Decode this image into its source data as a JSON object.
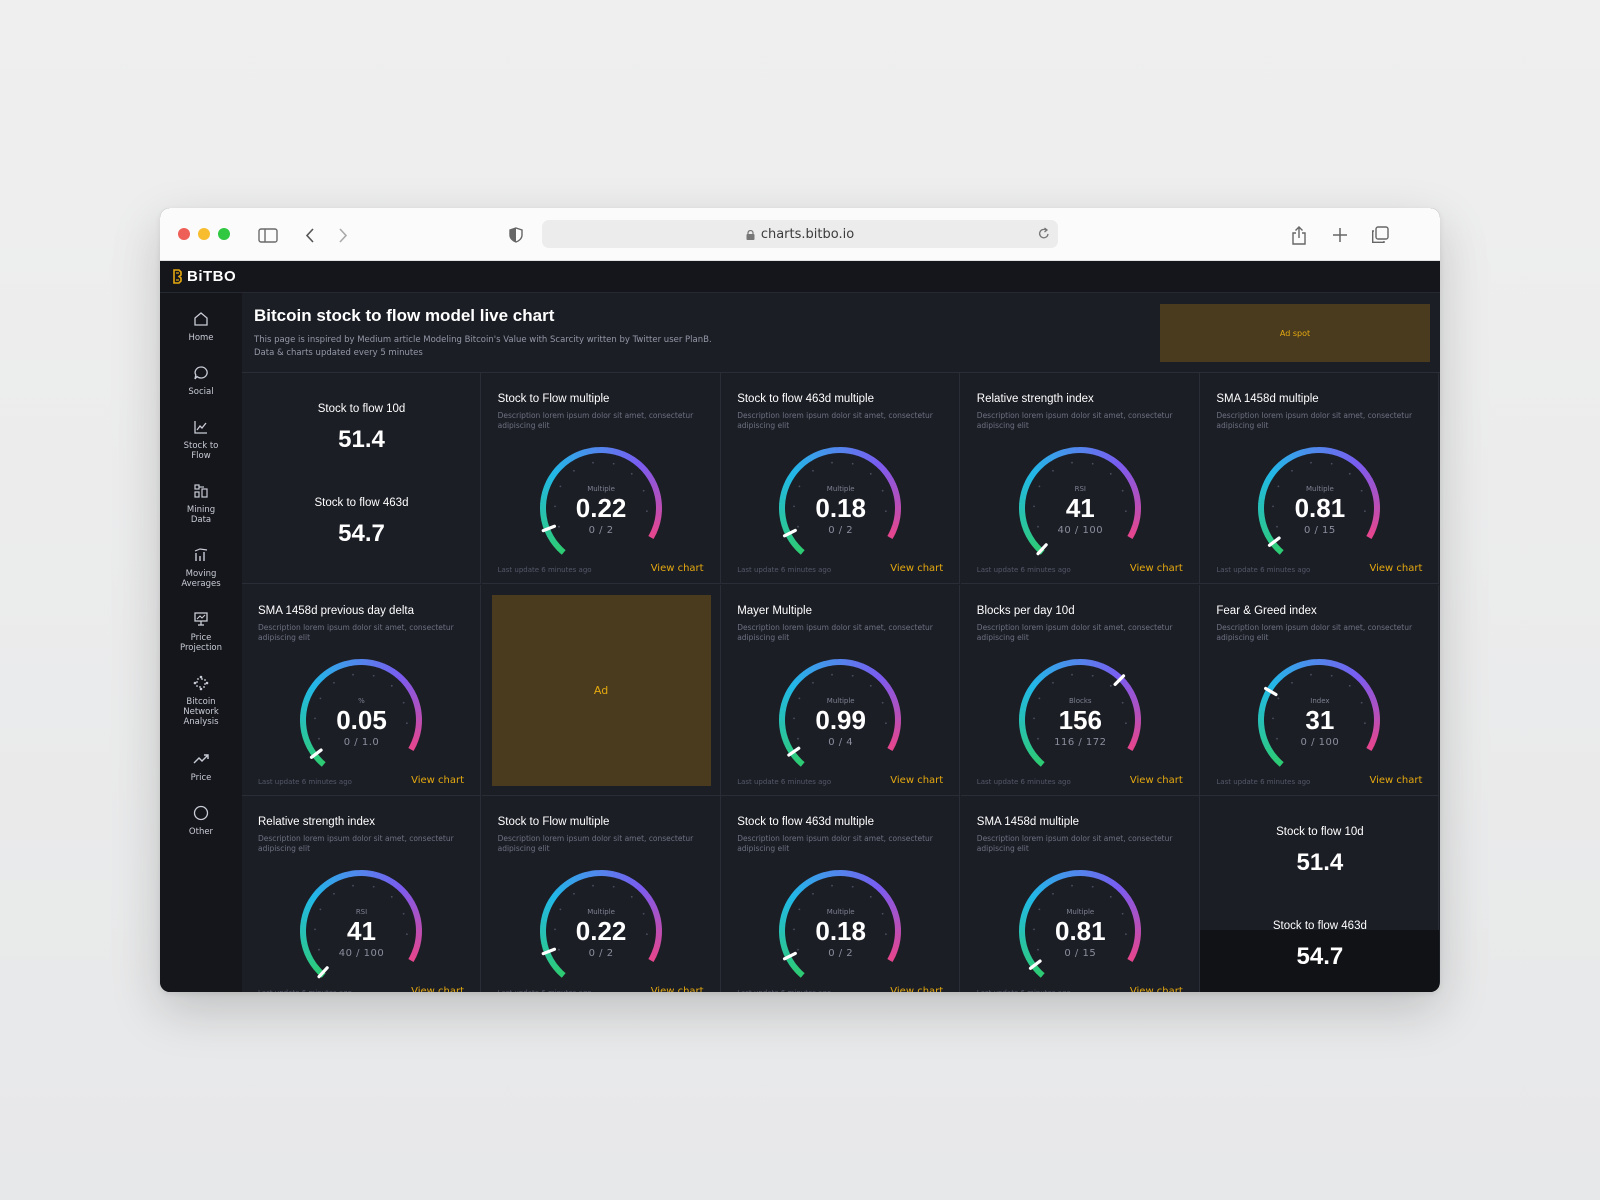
{
  "browser": {
    "url": "charts.bitbo.io"
  },
  "app": {
    "logo": "BiTBO"
  },
  "sidebar": {
    "items": [
      {
        "label": "Home",
        "icon": "home-icon"
      },
      {
        "label": "Social",
        "icon": "chat-icon"
      },
      {
        "label": "Stock to Flow",
        "icon": "line-chart-icon"
      },
      {
        "label": "Mining Data",
        "icon": "mining-icon"
      },
      {
        "label": "Moving Averages",
        "icon": "bar-chart-icon"
      },
      {
        "label": "Price Projection",
        "icon": "presentation-icon"
      },
      {
        "label": "Bitcoin Network Analysis",
        "icon": "network-icon"
      },
      {
        "label": "Price",
        "icon": "trend-up-icon"
      },
      {
        "label": "Other",
        "icon": "circle-icon"
      }
    ]
  },
  "header": {
    "title": "Bitcoin stock to flow model live chart",
    "desc_line1": "This page is inspired by Medium article Modeling Bitcoin's Value with Scarcity written by Twitter user PlanB.",
    "desc_line2": "Data & charts updated every 5 minutes",
    "ad_label": "Ad spot"
  },
  "common": {
    "description": "Description lorem ipsum dolor sit amet, consectetur adipiscing elit",
    "last_update": "Last update 6 minutes ago",
    "view_chart": "View chart"
  },
  "cards": [
    {
      "type": "stat",
      "label1": "Stock to flow 10d",
      "value1": "51.4",
      "label2": "Stock to flow 463d",
      "value2": "54.7"
    },
    {
      "type": "gauge",
      "title": "Stock to Flow multiple",
      "unit": "Multiple",
      "value": "0.22",
      "range": "0 / 2",
      "level": 0.11
    },
    {
      "type": "gauge",
      "title": "Stock to flow 463d multiple",
      "unit": "Multiple",
      "value": "0.18",
      "range": "0 / 2",
      "level": 0.09
    },
    {
      "type": "gauge",
      "title": "Relative strength index",
      "unit": "RSI",
      "value": "41",
      "range": "40 / 100",
      "level": 0.01
    },
    {
      "type": "gauge",
      "title": "SMA 1458d multiple",
      "unit": "Multiple",
      "value": "0.81",
      "range": "0 / 15",
      "level": 0.05
    },
    {
      "type": "gauge",
      "title": "SMA 1458d previous day delta",
      "unit": "%",
      "value": "0.05",
      "range": "0 / 1.0",
      "level": 0.05
    },
    {
      "type": "ad",
      "label": "Ad"
    },
    {
      "type": "gauge",
      "title": "Mayer Multiple",
      "unit": "Multiple",
      "value": "0.99",
      "range": "0 / 4",
      "level": 0.06
    },
    {
      "type": "gauge",
      "title": "Blocks per day 10d",
      "unit": "Blocks",
      "value": "156",
      "range": "116 / 172",
      "level": 0.71
    },
    {
      "type": "gauge",
      "title": "Fear & Greed index",
      "unit": "Index",
      "value": "31",
      "range": "0 / 100",
      "level": 0.31
    },
    {
      "type": "gauge",
      "title": "Relative strength index",
      "unit": "RSI",
      "value": "41",
      "range": "40 / 100",
      "level": 0.01
    },
    {
      "type": "gauge",
      "title": "Stock to Flow multiple",
      "unit": "Multiple",
      "value": "0.22",
      "range": "0 / 2",
      "level": 0.11
    },
    {
      "type": "gauge",
      "title": "Stock to flow 463d multiple",
      "unit": "Multiple",
      "value": "0.18",
      "range": "0 / 2",
      "level": 0.09
    },
    {
      "type": "gauge",
      "title": "SMA 1458d multiple",
      "unit": "Multiple",
      "value": "0.81",
      "range": "0 / 15",
      "level": 0.05
    },
    {
      "type": "stat",
      "label1": "Stock to flow 10d",
      "value1": "51.4",
      "label2": "Stock to flow 463d",
      "value2": "54.7"
    }
  ],
  "colors": {
    "accent": "#e5a90f",
    "gauge_start": "#2ecc71",
    "gauge_mid": "#22b8e8",
    "gauge_violet": "#7a5cf0",
    "gauge_end": "#e8458c"
  }
}
